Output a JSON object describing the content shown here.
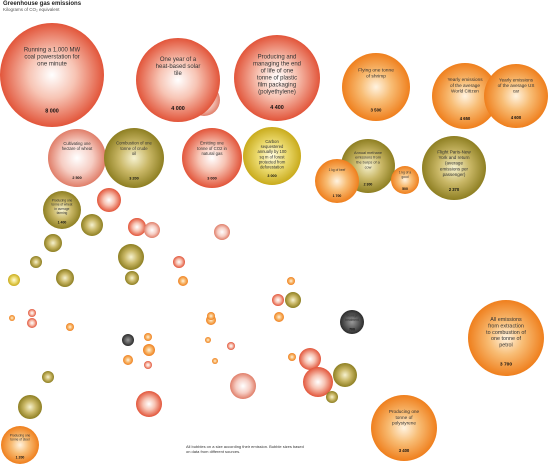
{
  "chart_data": {
    "type": "bubble",
    "title": "Greenhouse gas emissions",
    "subtitle": "Kilograms of CO₂ equivalent",
    "footnote": "All bubbles on a size according their emission. Bubble sizes based on data from different sources.",
    "colors": {
      "red": "#e2553a",
      "orange": "#f08526",
      "olive": "#9a8b27",
      "yellow": "#d8c22f",
      "pink": "#e08a78",
      "dark": "#3f3f3f"
    },
    "bubbles": [
      {
        "id": "b1",
        "label": "Running a 1,000 MW coal powerstation for one minute",
        "value": "8 000",
        "color": "red",
        "kg": 8000
      },
      {
        "id": "b2",
        "label": "One year of a heat-based solar tile",
        "value": "4 000",
        "color": "red",
        "kg": 4000
      },
      {
        "id": "b3",
        "label": "Producing and managing the end of life of one tonne of plastic film packaging (polyethylene)",
        "value": "4 400",
        "color": "red",
        "kg": 4400
      },
      {
        "id": "b4",
        "label": "Flying one tonne of shrimp",
        "value": "3 500",
        "color": "orange",
        "kg": 3500
      },
      {
        "id": "b5",
        "label": "Yearly emissions of the average World Citizen",
        "value": "4 650",
        "color": "orange",
        "kg": 4650
      },
      {
        "id": "b6",
        "label": "Yearly emissions of the average US car",
        "value": "4 600",
        "color": "orange",
        "kg": 4600
      },
      {
        "id": "b7",
        "label": "Cultivating one hectare of wheat",
        "value": "2 500",
        "color": "pink",
        "kg": 2500
      },
      {
        "id": "b8",
        "label": "Combustion of one tonne of crude oil",
        "value": "3 200",
        "color": "olive",
        "kg": 3200
      },
      {
        "id": "b9",
        "label": "Emitting one tonne of CO2 in natural gas",
        "value": "3 000",
        "color": "red",
        "kg": 3000
      },
      {
        "id": "b10",
        "label": "Carbon sequestered annually by 100 sq m of forest protected from deforestation",
        "value": "3 000",
        "color": "yellow",
        "kg": 3000
      },
      {
        "id": "b11",
        "label": "Annual methane emissions from the burps of a cow",
        "value": "2 300",
        "color": "olive",
        "kg": 2300
      },
      {
        "id": "b12",
        "label": "Flight Paris-New York and return (average emissions per passenger)",
        "value": "2 370",
        "color": "olive",
        "kg": 2370
      },
      {
        "id": "b13",
        "label": "1 kg of beef",
        "value": "1 700",
        "color": "orange",
        "kg": 1700
      },
      {
        "id": "b14",
        "label": "1 kg of a good",
        "value": "500",
        "color": "orange",
        "kg": 500
      },
      {
        "id": "b15",
        "label": "Producing one tonne of wheat in average farming",
        "value": "1 400",
        "color": "olive",
        "kg": 1400
      },
      {
        "id": "b16",
        "label": "All emissions from extraction to combustion of one tonne of petrol",
        "value": "3 700",
        "color": "orange",
        "kg": 3700
      },
      {
        "id": "b17",
        "label": "Producing one tonne of polystyrene",
        "value": "3 400",
        "color": "orange",
        "kg": 3400
      },
      {
        "id": "b18",
        "label": "Producing one tonne of steel",
        "value": "1 200",
        "color": "orange",
        "kg": 1200
      },
      {
        "id": "b19",
        "label": "Sewage treatment",
        "value": "700",
        "color": "dark",
        "kg": 700
      }
    ]
  }
}
